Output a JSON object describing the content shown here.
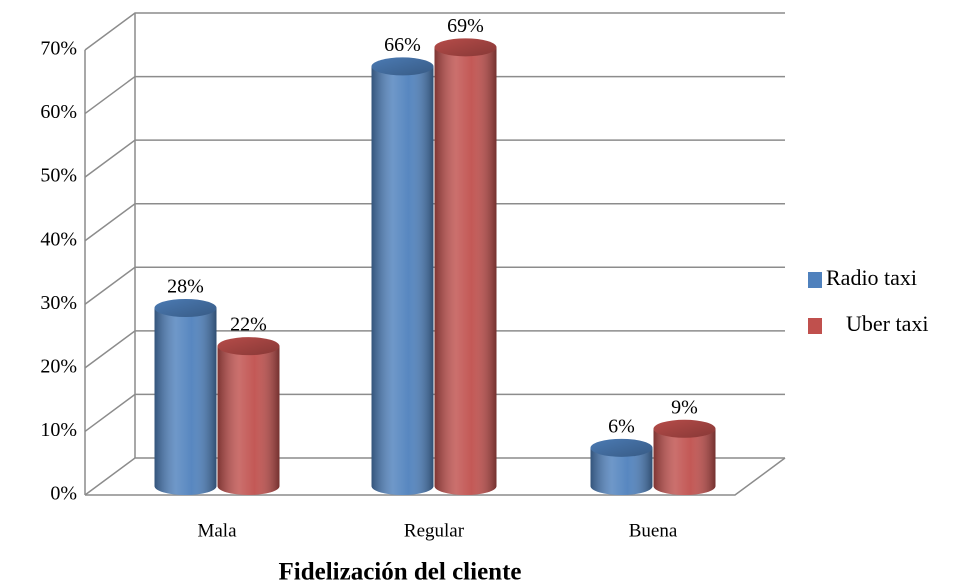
{
  "chart_data": {
    "type": "bar3d",
    "xlabel": "Fidelización del cliente",
    "categories": [
      "Mala",
      "Regular",
      "Buena"
    ],
    "series": [
      {
        "name": "Radio taxi",
        "color": "#4f81bd",
        "values": [
          28,
          66,
          6
        ],
        "value_labels": [
          "28%",
          "66%",
          "6%"
        ]
      },
      {
        "name": "Uber taxi",
        "color": "#c0504d",
        "values": [
          22,
          69,
          9
        ],
        "value_labels": [
          "22%",
          "69%",
          "9%"
        ]
      }
    ],
    "ylim": [
      0,
      70
    ],
    "yticks": [
      {
        "value": 0,
        "label": "0%"
      },
      {
        "value": 10,
        "label": "10%"
      },
      {
        "value": 20,
        "label": "20%"
      },
      {
        "value": 30,
        "label": "30%"
      },
      {
        "value": 40,
        "label": "40%"
      },
      {
        "value": 50,
        "label": "50%"
      },
      {
        "value": 60,
        "label": "60%"
      },
      {
        "value": 70,
        "label": "70%"
      }
    ],
    "grid": true,
    "legend": "right"
  }
}
